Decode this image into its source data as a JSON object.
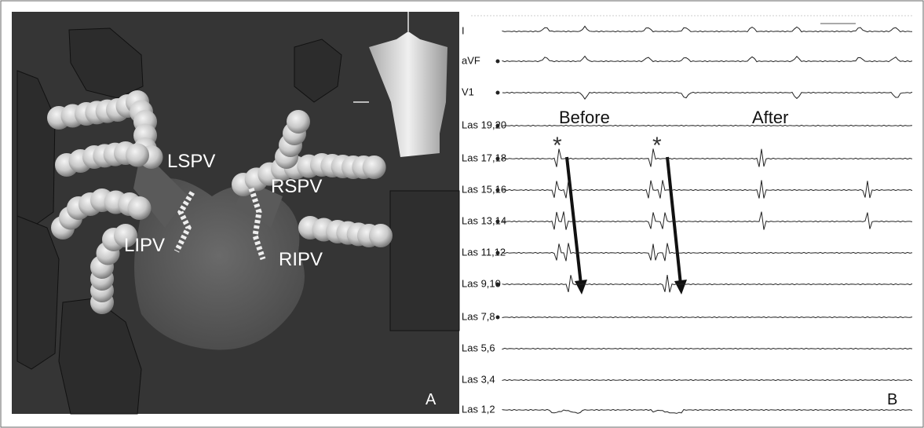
{
  "panel_a": {
    "labels": [
      "LSPV",
      "RSPV",
      "LIPV",
      "RIPV"
    ],
    "letter": "A"
  },
  "panel_b": {
    "leads": [
      "I",
      "aVF",
      "V1",
      "Las 19,20",
      "Las 17,18",
      "Las 15,16",
      "Las 13,14",
      "Las 11,12",
      "Las 9,10",
      "Las 7,8",
      "Las 5,6",
      "Las 3,4",
      "Las 1,2"
    ],
    "before": "Before",
    "after": "After",
    "markers": [
      "*",
      "*"
    ],
    "letter": "B"
  }
}
